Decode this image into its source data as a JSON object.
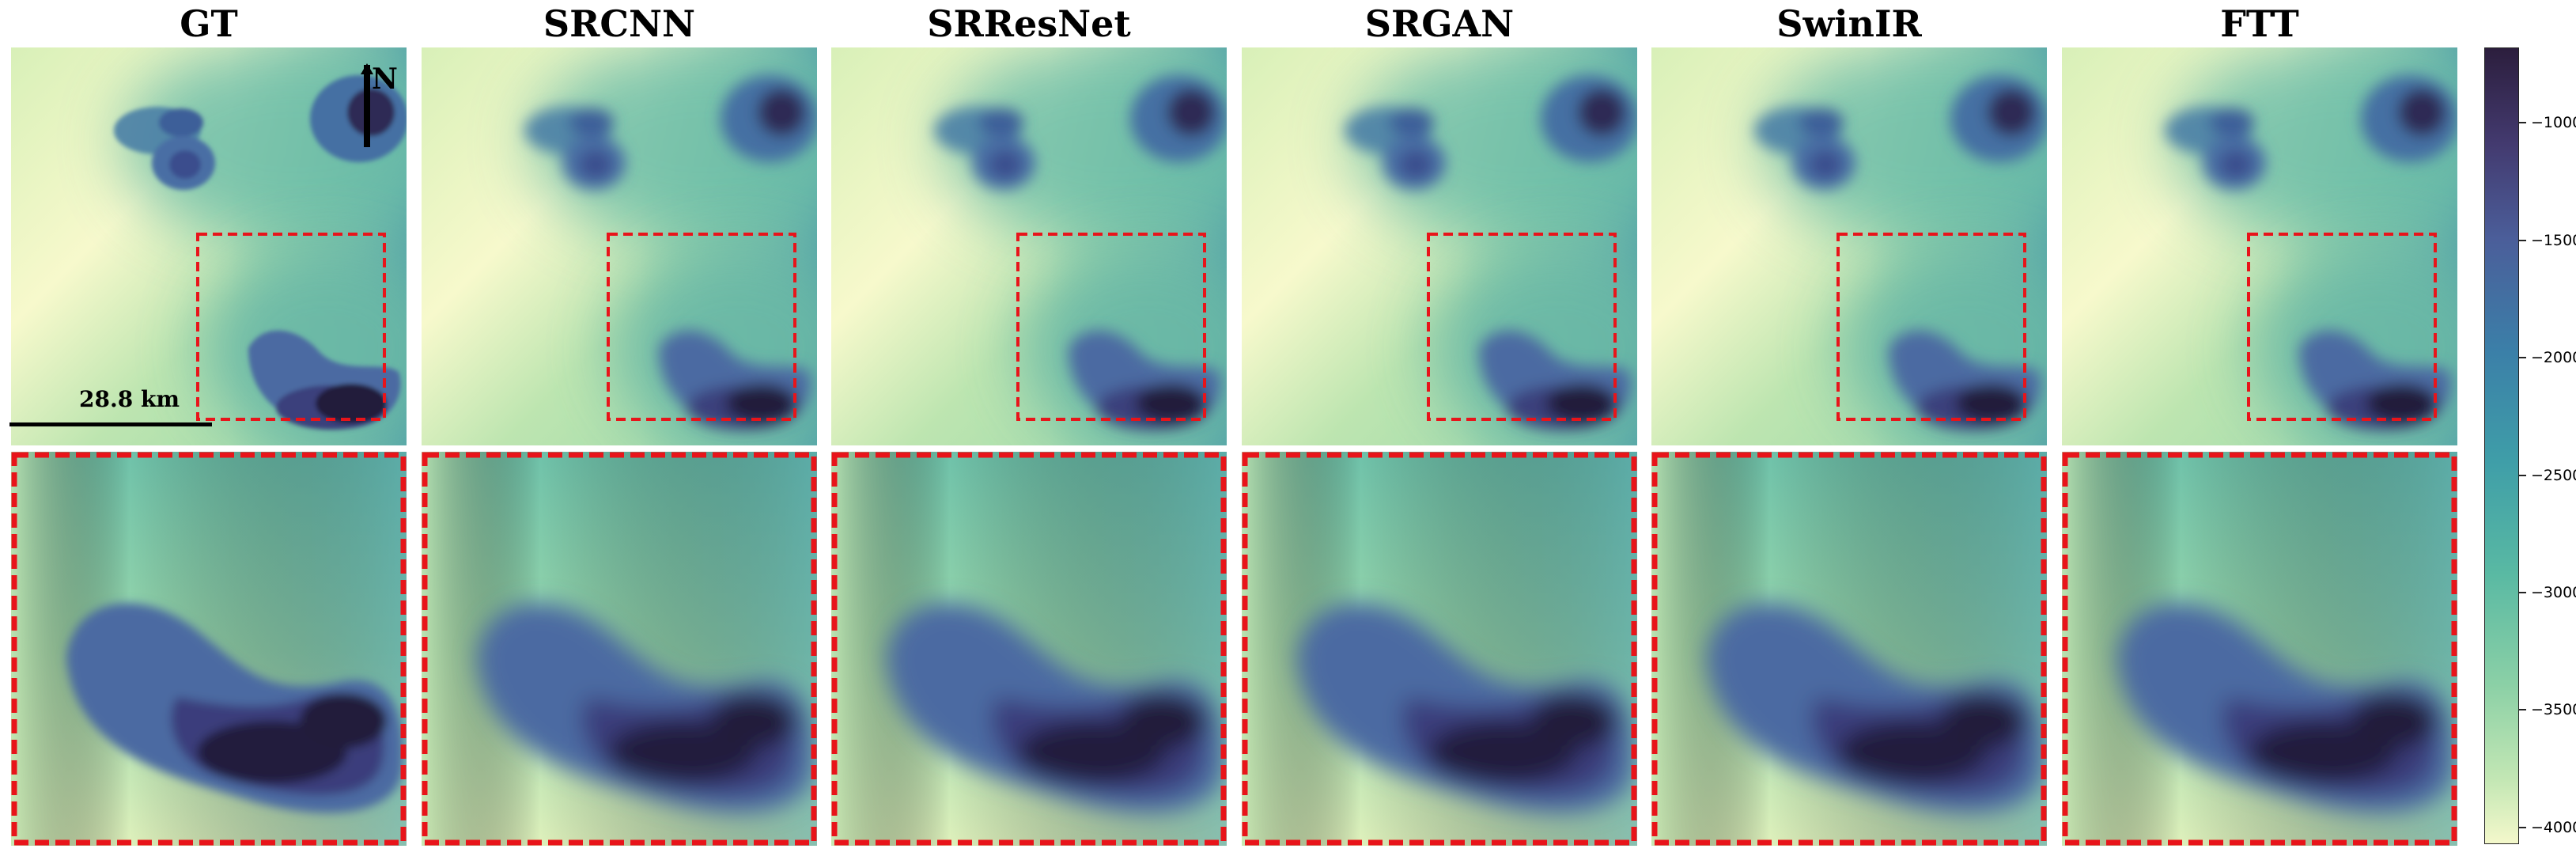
{
  "titles": [
    "GT",
    "SRCNN",
    "SRResNet",
    "SRGAN",
    "SwinIR",
    "FTT"
  ],
  "scale_bar_label": "28.8 km",
  "north_label": "N",
  "colorbar": {
    "ticks": [
      "-1000",
      "-1500",
      "-2000",
      "-2500",
      "-3000",
      "-3500",
      "-4000"
    ],
    "colors": [
      "#2c1e3d",
      "#4b5e9a",
      "#3f9ea8",
      "#8bd0a6",
      "#f4f8cb"
    ]
  },
  "zoom_box_color": "#e8141a"
}
